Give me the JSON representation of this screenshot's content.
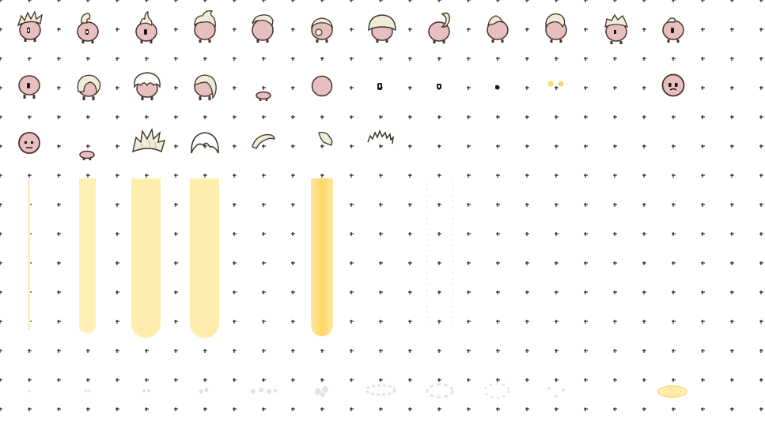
{
  "sheet": {
    "background": "#ffffff",
    "grid_marker": "+",
    "grid_marker_color": "#000000"
  },
  "palette": {
    "skin": "#e8bfbf",
    "skin_outline": "#4a3030",
    "hair": "#f1ecd9",
    "hair_shade": "#c9c3a4",
    "hair_outline": "#3a3528",
    "eye": "#1a1a1a",
    "beam_light": "#fff0b8",
    "beam_mid": "#ffe9a6",
    "beam_core": "#ffd86a",
    "dust": "#e0e0e0"
  },
  "rows": [
    {
      "name": "heads-with-hair",
      "sprites": [
        {
          "kind": "head-spiky-hair"
        },
        {
          "kind": "head-curl-tuft"
        },
        {
          "kind": "head-flame-tuft"
        },
        {
          "kind": "head-tilted-hair"
        },
        {
          "kind": "head-swept-hair"
        },
        {
          "kind": "head-back-bun"
        },
        {
          "kind": "head-mushroom-cap"
        },
        {
          "kind": "head-hook-tuft"
        },
        {
          "kind": "head-side-tuft"
        },
        {
          "kind": "head-side-swept"
        },
        {
          "kind": "head-short-spiky"
        },
        {
          "kind": "head-tuft-small"
        }
      ]
    },
    {
      "name": "heads-and-parts",
      "sprites": [
        {
          "kind": "head-bald"
        },
        {
          "kind": "head-white-hair"
        },
        {
          "kind": "head-white-fluff"
        },
        {
          "kind": "head-hair-side"
        },
        {
          "kind": "feet-pair"
        },
        {
          "kind": "bald-circle"
        },
        {
          "kind": "eye-small"
        },
        {
          "kind": "eye-small"
        },
        {
          "kind": "eye-dot"
        },
        {
          "kind": "glow-eyes"
        },
        {
          "kind": "face-bald"
        }
      ]
    },
    {
      "name": "extra-parts",
      "sprites": [
        {
          "kind": "face-bald-small"
        },
        {
          "kind": "feet-pair"
        },
        {
          "kind": "hair-spiky"
        },
        {
          "kind": "hair-bowl"
        },
        {
          "kind": "hair-wisp"
        },
        {
          "kind": "hair-tuft"
        },
        {
          "kind": "hair-spikes-outline"
        }
      ]
    },
    {
      "name": "beams",
      "sprites": [
        {
          "kind": "beam-thin"
        },
        {
          "kind": "beam-medium"
        },
        {
          "kind": "beam-wide"
        },
        {
          "kind": "beam-wide"
        },
        {
          "kind": "beam-core"
        },
        {
          "kind": "beam-dotted"
        }
      ]
    },
    {
      "name": "effects",
      "sprites": [
        {
          "kind": "dust"
        },
        {
          "kind": "dust"
        },
        {
          "kind": "dust"
        },
        {
          "kind": "dust"
        },
        {
          "kind": "dust"
        },
        {
          "kind": "dust"
        },
        {
          "kind": "dust"
        },
        {
          "kind": "dust"
        },
        {
          "kind": "dust"
        },
        {
          "kind": "dust"
        },
        {
          "kind": "halo-sigil"
        }
      ]
    }
  ]
}
